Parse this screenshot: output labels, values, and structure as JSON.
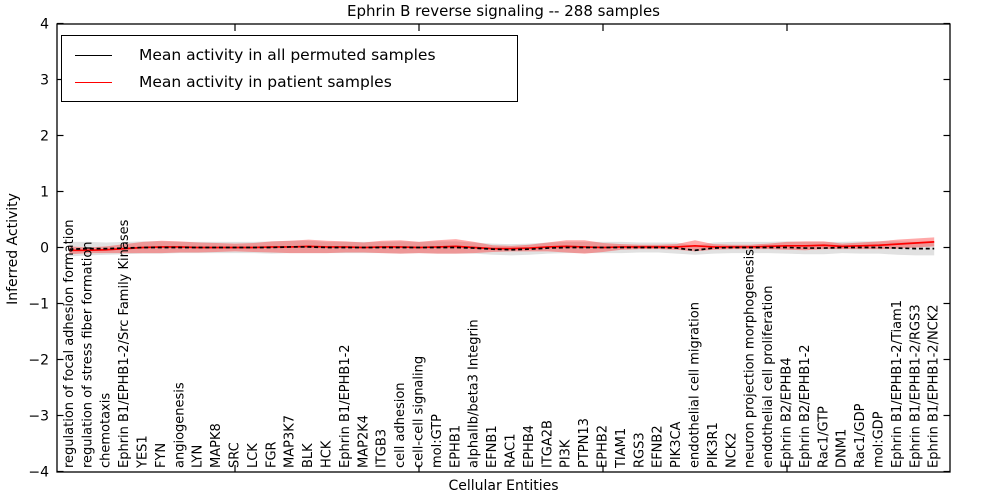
{
  "chart_data": {
    "type": "line",
    "title": "Ephrin B reverse signaling -- 288 samples",
    "xlabel": "Cellular Entities",
    "ylabel": "Inferred Activity",
    "ylim": [
      -4,
      4
    ],
    "yticks": [
      4,
      3,
      2,
      1,
      0,
      -1,
      -2,
      -3,
      -4
    ],
    "ytick_labels": [
      "4",
      "3",
      "2",
      "1",
      "0",
      "−1",
      "−2",
      "−3",
      "−4"
    ],
    "xtick_indices": [
      9,
      19,
      29,
      39
    ],
    "grid": false,
    "legend_position": "upper left",
    "categories": [
      "regulation of focal adhesion formation",
      "regulation of stress fiber formation",
      "chemotaxis",
      "Ephrin B1/EPHB1-2/Src Family Kinases",
      "YES1",
      "FYN",
      "angiogenesis",
      "LYN",
      "MAPK8",
      "SRC",
      "LCK",
      "FGR",
      "MAP3K7",
      "BLK",
      "HCK",
      "Ephrin B1/EPHB1-2",
      "MAP2K4",
      "ITGB3",
      "cell adhesion",
      "cell-cell signaling",
      "mol:GTP",
      "EPHB1",
      "alphaIIb/beta3 Integrin",
      "EFNB1",
      "RAC1",
      "EPHB4",
      "ITGA2B",
      "PI3K",
      "PTPN13",
      "EPHB2",
      "TIAM1",
      "RGS3",
      "EFNB2",
      "PIK3CA",
      "endothelial cell migration",
      "PIK3R1",
      "NCK2",
      "neuron projection morphogenesis",
      "endothelial cell proliferation",
      "Ephrin B2/EPHB4",
      "Ephrin B2/EPHB1-2",
      "Rac1/GTP",
      "DNM1",
      "Rac1/GDP",
      "mol:GDP",
      "Ephrin B1/EPHB1-2/Tiam1",
      "Ephrin B1/EPHB1-2/RGS3",
      "Ephrin B1/EPHB1-2/NCK2"
    ],
    "series": [
      {
        "name": "Mean activity in all permuted samples",
        "color": "#000000",
        "style": "dashed",
        "values": [
          -0.03,
          -0.02,
          -0.02,
          -0.01,
          0,
          0,
          0,
          0,
          0,
          0,
          0,
          0,
          0.01,
          0.01,
          0,
          0,
          0,
          0,
          0,
          0,
          0,
          0,
          -0.01,
          -0.03,
          -0.04,
          -0.03,
          -0.01,
          0,
          0,
          0,
          0,
          0,
          0,
          -0.01,
          -0.05,
          -0.01,
          0,
          0,
          0,
          0,
          -0.01,
          -0.01,
          0,
          0,
          0,
          -0.01,
          -0.02,
          -0.02
        ],
        "band_std": [
          0.13,
          0.12,
          0.11,
          0.11,
          0.11,
          0.11,
          0.1,
          0.1,
          0.1,
          0.1,
          0.1,
          0.11,
          0.11,
          0.11,
          0.1,
          0.1,
          0.1,
          0.1,
          0.11,
          0.1,
          0.11,
          0.11,
          0.1,
          0.1,
          0.1,
          0.1,
          0.1,
          0.1,
          0.1,
          0.1,
          0.1,
          0.09,
          0.09,
          0.1,
          0.08,
          0.1,
          0.1,
          0.1,
          0.1,
          0.11,
          0.11,
          0.11,
          0.1,
          0.11,
          0.11,
          0.12,
          0.12,
          0.12
        ],
        "band_color": "#c8c8c8",
        "band_opacity": 0.55
      },
      {
        "name": "Mean activity in patient samples",
        "color": "#ff0000",
        "style": "solid",
        "values": [
          -0.05,
          -0.05,
          -0.04,
          -0.02,
          0,
          0.01,
          0.01,
          0,
          0,
          0,
          0,
          0.01,
          0.01,
          0.02,
          0.01,
          0.01,
          0,
          0.01,
          0.01,
          0,
          0.01,
          0.02,
          0,
          -0.02,
          -0.02,
          -0.01,
          0.01,
          0.02,
          0.01,
          0,
          0.01,
          0.01,
          0.01,
          0.01,
          0.03,
          0.01,
          0.01,
          0.01,
          0.02,
          0.03,
          0.03,
          0.04,
          0.02,
          0.03,
          0.04,
          0.06,
          0.08,
          0.1
        ],
        "band_std": [
          0.07,
          0.05,
          0.06,
          0.08,
          0.1,
          0.11,
          0.1,
          0.09,
          0.08,
          0.07,
          0.08,
          0.1,
          0.11,
          0.12,
          0.11,
          0.1,
          0.09,
          0.11,
          0.12,
          0.1,
          0.12,
          0.13,
          0.1,
          0.06,
          0.05,
          0.06,
          0.08,
          0.11,
          0.12,
          0.08,
          0.05,
          0.04,
          0.04,
          0.05,
          0.1,
          0.05,
          0.04,
          0.04,
          0.05,
          0.07,
          0.08,
          0.07,
          0.05,
          0.06,
          0.07,
          0.08,
          0.08,
          0.08
        ],
        "band_color": "#ff3333",
        "band_opacity": 0.42
      }
    ],
    "legend": [
      {
        "label": "Mean activity in all permuted samples",
        "color": "#000000"
      },
      {
        "label": "Mean activity in patient samples",
        "color": "#ff0000"
      }
    ]
  }
}
